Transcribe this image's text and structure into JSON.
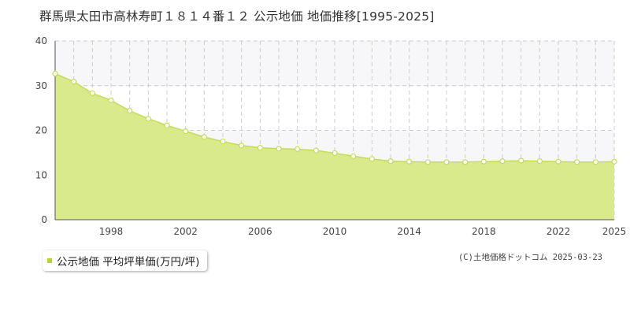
{
  "chart_data": {
    "type": "area",
    "title": "群馬県太田市高林寿町１８１４番１２ 公示地価 地価推移[1995-2025]",
    "x": [
      1995,
      1996,
      1997,
      1998,
      1999,
      2000,
      2001,
      2002,
      2003,
      2004,
      2005,
      2006,
      2007,
      2008,
      2009,
      2010,
      2011,
      2012,
      2013,
      2014,
      2015,
      2016,
      2017,
      2018,
      2019,
      2020,
      2021,
      2022,
      2023,
      2024,
      2025
    ],
    "series": [
      {
        "name": "公示地価 平均坪単価(万円/坪)",
        "values": [
          32.7,
          30.9,
          28.3,
          26.7,
          24.4,
          22.6,
          21.1,
          19.8,
          18.5,
          17.5,
          16.6,
          16.1,
          15.9,
          15.8,
          15.5,
          14.9,
          14.2,
          13.6,
          13.1,
          13.0,
          12.9,
          12.9,
          12.9,
          13.0,
          13.1,
          13.2,
          13.1,
          13.0,
          12.9,
          12.9,
          13.0
        ]
      }
    ],
    "x_tick_labels": [
      "1998",
      "2002",
      "2006",
      "2010",
      "2014",
      "2018",
      "2022",
      "2025"
    ],
    "x_tick_values": [
      1998,
      2002,
      2006,
      2010,
      2014,
      2018,
      2022,
      2025
    ],
    "y_ticks": [
      0,
      10,
      20,
      30,
      40
    ],
    "xlim": [
      1995,
      2025
    ],
    "ylim": [
      0,
      40
    ],
    "grid": true,
    "legend_position": "bottom-left",
    "colors": {
      "area_fill": "#d9ea8c",
      "line": "#c3dc5a",
      "marker_fill": "#ffffff",
      "band_fill": "#f7f7fa",
      "grid": "#cccccc",
      "legend_marker": "#b5d43a"
    }
  },
  "legend": {
    "label": "公示地価 平均坪単価(万円/坪)"
  },
  "copyright": "(C)土地価格ドットコム 2025-03-23"
}
